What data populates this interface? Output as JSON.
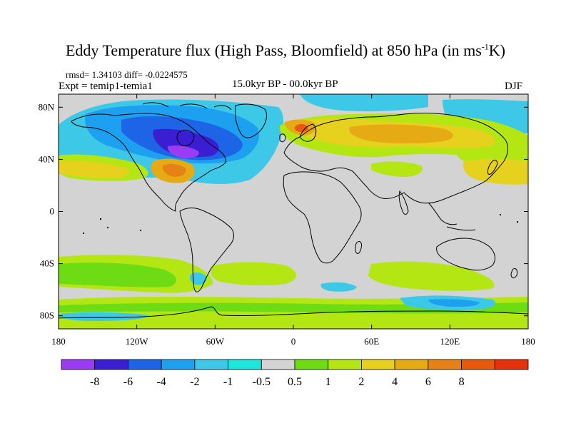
{
  "title": {
    "main": "Eddy Temperature flux (High Pass, Bloomfield) at 850 hPa (in ms",
    "sup": "-1",
    "tail": "K)"
  },
  "stats": "rmsd= 1.34103 diff= -0.0224575",
  "experiment": "Expt = temip1-temia1",
  "period": "15.0kyr BP - 00.0kyr BP",
  "season": "DJF",
  "map": {
    "lon_range": [
      -180,
      180
    ],
    "lat_range": [
      -90,
      90
    ],
    "lat_ticks": [
      {
        "value": 80,
        "label": "80N"
      },
      {
        "value": 40,
        "label": "40N"
      },
      {
        "value": 0,
        "label": "0"
      },
      {
        "value": -40,
        "label": "40S"
      },
      {
        "value": -80,
        "label": "80S"
      }
    ],
    "lon_ticks": [
      {
        "value": -180,
        "label": "180"
      },
      {
        "value": -120,
        "label": "120W"
      },
      {
        "value": -60,
        "label": "60W"
      },
      {
        "value": 0,
        "label": "0"
      },
      {
        "value": 60,
        "label": "60E"
      },
      {
        "value": 120,
        "label": "120E"
      },
      {
        "value": 180,
        "label": "180"
      }
    ],
    "background_color": "#d3d3d3",
    "coastline_color": "#000000"
  },
  "colorbar": {
    "colors": [
      "#9b3cf5",
      "#3c1ed2",
      "#1e64e6",
      "#1ea0f0",
      "#3cc8e6",
      "#1ee6dc",
      "#d3d3d3",
      "#6edc14",
      "#b4e614",
      "#e6d21e",
      "#e6aa14",
      "#e68214",
      "#e65a0a",
      "#e6320a"
    ],
    "labels": [
      "-8",
      "-6",
      "-4",
      "-2",
      "-1",
      "-0.5",
      "0.5",
      "1",
      "2",
      "4",
      "6",
      "8"
    ]
  }
}
